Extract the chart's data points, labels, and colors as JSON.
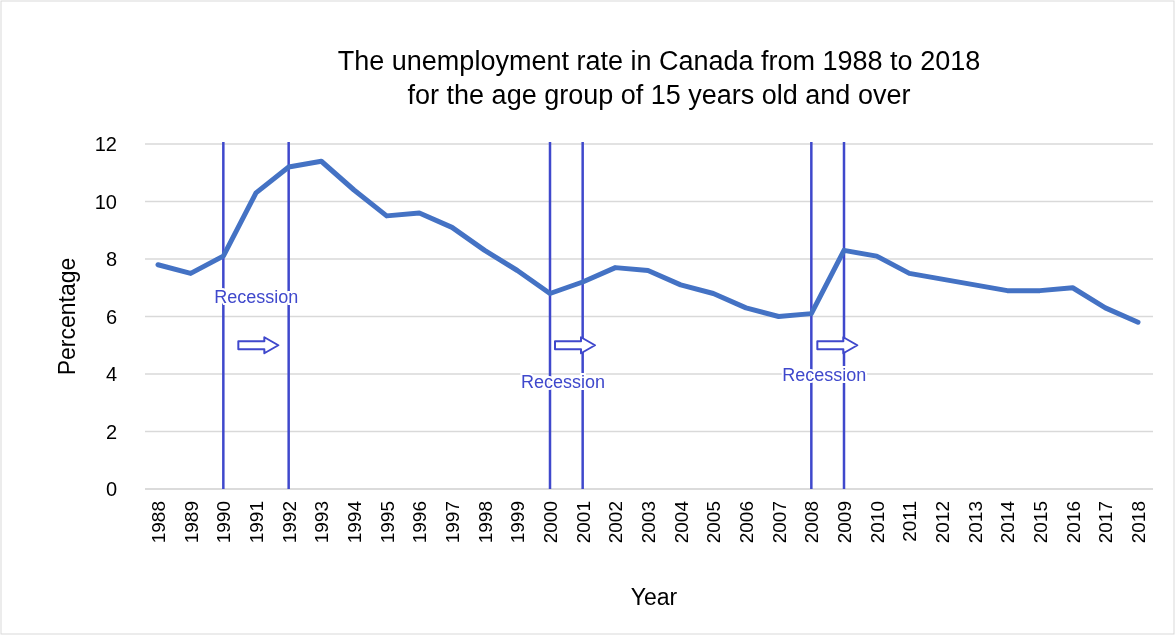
{
  "chart_data": {
    "type": "line",
    "title": "The unemployment rate in Canada from 1988 to 2018\nfor the age group of 15 years old and over",
    "xlabel": "Year",
    "ylabel": "Percentage",
    "categories": [
      "1988",
      "1989",
      "1990",
      "1991",
      "1992",
      "1993",
      "1994",
      "1995",
      "1996",
      "1997",
      "1998",
      "1999",
      "2000",
      "2001",
      "2002",
      "2003",
      "2004",
      "2005",
      "2006",
      "2007",
      "2008",
      "2009",
      "2010",
      "2011",
      "2012",
      "2013",
      "2014",
      "2015",
      "2016",
      "2017",
      "2018"
    ],
    "series": [
      {
        "color": "#4472c4",
        "values": [
          7.8,
          7.5,
          8.1,
          10.3,
          11.2,
          11.4,
          10.4,
          9.5,
          9.6,
          9.1,
          8.3,
          7.6,
          6.8,
          7.2,
          7.7,
          7.6,
          7.1,
          6.8,
          6.3,
          6.0,
          6.1,
          8.3,
          8.1,
          7.5,
          7.3,
          7.1,
          6.9,
          6.9,
          7.0,
          6.3,
          5.8
        ]
      }
    ],
    "ylim": [
      0,
      12
    ],
    "yticks": [
      0,
      2,
      4,
      6,
      8,
      10,
      12
    ],
    "grid": "y",
    "marker": "none",
    "line_style": "solid",
    "ref_lines": [
      {
        "axis": "x",
        "value": "1990",
        "color": "#3f48cc",
        "label": "Recession"
      },
      {
        "axis": "x",
        "value": "1992",
        "color": "#3f48cc"
      },
      {
        "axis": "x",
        "value": "2000",
        "color": "#3f48cc",
        "label": "Recession"
      },
      {
        "axis": "x",
        "value": "2001",
        "color": "#3f48cc"
      },
      {
        "axis": "x",
        "value": "2008",
        "color": "#3f48cc",
        "label": "Recession"
      },
      {
        "axis": "x",
        "value": "2009",
        "color": "#3f48cc"
      }
    ]
  }
}
